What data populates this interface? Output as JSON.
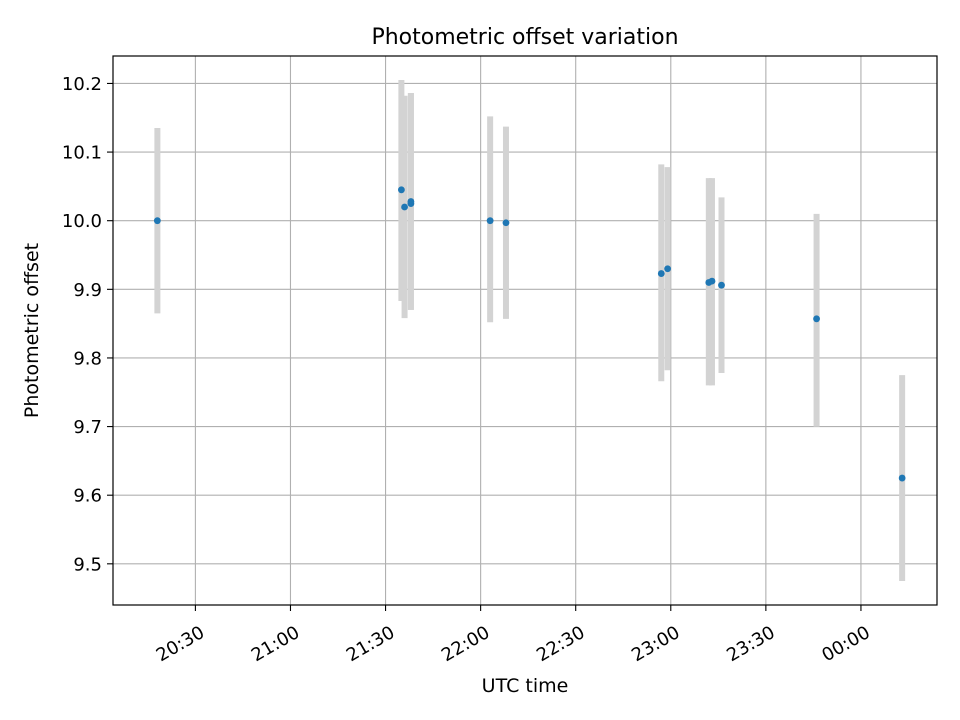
{
  "chart_data": {
    "type": "scatter",
    "title": "Photometric offset variation",
    "xlabel": "UTC time",
    "ylabel": "Photometric offset",
    "x_tick_labels": [
      "20:30",
      "21:00",
      "21:30",
      "22:00",
      "22:30",
      "23:00",
      "23:30",
      "00:00"
    ],
    "x_ticks": [
      "20:30",
      "21:00",
      "21:30",
      "22:00",
      "22:30",
      "23:00",
      "23:30",
      "24:00"
    ],
    "xlim": [
      "20:04",
      "24:24"
    ],
    "ylim": [
      9.44,
      10.24
    ],
    "y_ticks": [
      9.5,
      9.6,
      9.7,
      9.8,
      9.9,
      10.0,
      10.1,
      10.2
    ],
    "y_tick_labels": [
      "9.5",
      "9.6",
      "9.7",
      "9.8",
      "9.9",
      "10.0",
      "10.1",
      "10.2"
    ],
    "grid": true,
    "point_color": "#1f77b4",
    "errorbar_color": "#d3d3d3",
    "points": [
      {
        "time": "20:18",
        "y": 10.0,
        "ylow": 9.865,
        "yhigh": 10.135
      },
      {
        "time": "21:35",
        "y": 10.045,
        "ylow": 9.883,
        "yhigh": 10.205
      },
      {
        "time": "21:36",
        "y": 10.02,
        "ylow": 9.858,
        "yhigh": 10.182
      },
      {
        "time": "21:38",
        "y": 10.025,
        "ylow": 9.87,
        "yhigh": 10.186
      },
      {
        "time": "21:38",
        "y": 10.028,
        "ylow": 9.87,
        "yhigh": 10.186
      },
      {
        "time": "22:03",
        "y": 10.0,
        "ylow": 9.852,
        "yhigh": 10.152
      },
      {
        "time": "22:08",
        "y": 9.997,
        "ylow": 9.857,
        "yhigh": 10.137
      },
      {
        "time": "22:57",
        "y": 9.923,
        "ylow": 9.766,
        "yhigh": 10.082
      },
      {
        "time": "22:59",
        "y": 9.93,
        "ylow": 9.782,
        "yhigh": 10.078
      },
      {
        "time": "23:12",
        "y": 9.91,
        "ylow": 9.76,
        "yhigh": 10.062
      },
      {
        "time": "23:13",
        "y": 9.912,
        "ylow": 9.76,
        "yhigh": 10.062
      },
      {
        "time": "23:16",
        "y": 9.906,
        "ylow": 9.778,
        "yhigh": 10.034
      },
      {
        "time": "23:46",
        "y": 9.857,
        "ylow": 9.7,
        "yhigh": 10.01
      },
      {
        "time": "24:13",
        "y": 9.625,
        "ylow": 9.475,
        "yhigh": 9.775
      }
    ]
  }
}
